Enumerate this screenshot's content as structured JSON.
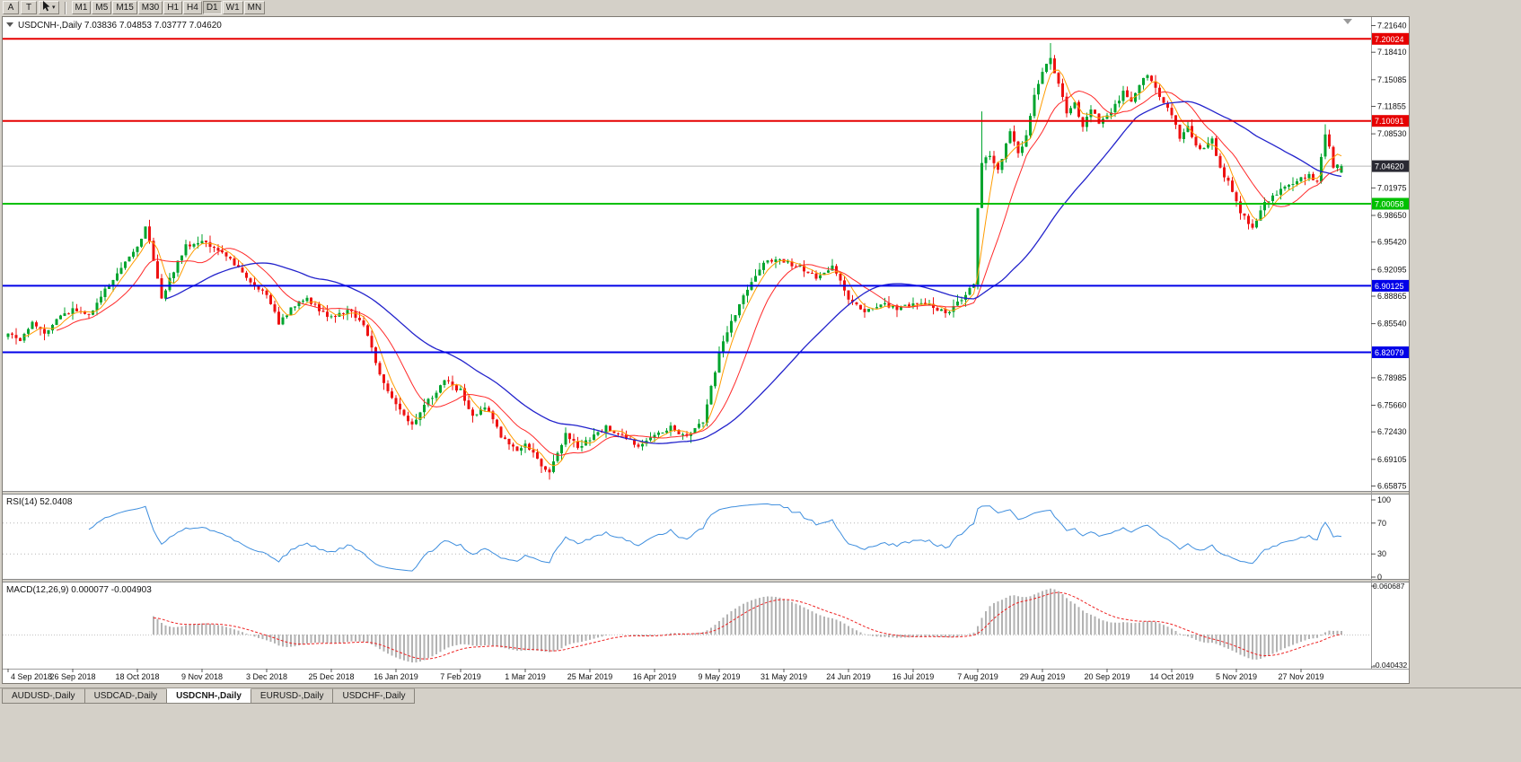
{
  "window": {
    "toolbar": {
      "button_a": "A",
      "button_t": "T",
      "timeframes": [
        "M1",
        "M5",
        "M15",
        "M30",
        "H1",
        "H4",
        "D1",
        "W1",
        "MN"
      ],
      "active_timeframe": "D1"
    },
    "tabs": [
      {
        "label": "AUDUSD-,Daily",
        "active": false
      },
      {
        "label": "USDCAD-,Daily",
        "active": false
      },
      {
        "label": "USDCNH-,Daily",
        "active": true
      },
      {
        "label": "EURUSD-,Daily",
        "active": false
      },
      {
        "label": "USDCHF-,Daily",
        "active": false
      }
    ]
  },
  "chart_data": {
    "type": "candlestick",
    "symbol": "USDCNH-",
    "period": "Daily",
    "title_text": "USDCNH-,Daily  7.03836 7.04853 7.03777 7.04620",
    "ohlc": {
      "open": 7.03836,
      "high": 7.04853,
      "low": 7.03777,
      "close": 7.0462
    },
    "colors": {
      "up": "#00a42e",
      "down": "#ee1111",
      "ma_fast": "#ff9c00",
      "ma_mid": "#ff2a2a",
      "ma_slow": "#2323cc",
      "bid_line": "#b8b8b8",
      "bid_box": "#2a2a33",
      "rsi": "#3e8ede",
      "macd_hist": "#b2b2b2",
      "macd_signal": "#ee2222",
      "level_red": "#e60000",
      "level_green": "#00c000",
      "level_blue": "#0202e8"
    },
    "y_axis": {
      "min": 6.655,
      "max": 7.2245,
      "ticks": [
        {
          "price": 7.2164,
          "label": "7.21640"
        },
        {
          "price": 7.1841,
          "label": "7.18410"
        },
        {
          "price": 7.15085,
          "label": "7.15085"
        },
        {
          "price": 7.11855,
          "label": "7.11855"
        },
        {
          "price": 7.0853,
          "label": "7.08530"
        },
        {
          "price": 7.01975,
          "label": "7.01975"
        },
        {
          "price": 6.9865,
          "label": "6.98650"
        },
        {
          "price": 6.9542,
          "label": "6.95420"
        },
        {
          "price": 6.92095,
          "label": "6.92095"
        },
        {
          "price": 6.88865,
          "label": "6.88865"
        },
        {
          "price": 6.8554,
          "label": "6.85540"
        },
        {
          "price": 6.78985,
          "label": "6.78985"
        },
        {
          "price": 6.7566,
          "label": "6.75660"
        },
        {
          "price": 6.7243,
          "label": "6.72430"
        },
        {
          "price": 6.69105,
          "label": "6.69105"
        },
        {
          "price": 6.65875,
          "label": "6.65875"
        }
      ]
    },
    "x_axis": {
      "bars_per_label": 16,
      "total_bars": 331,
      "labels": [
        "4 Sep 2018",
        "26 Sep 2018",
        "18 Oct 2018",
        "9 Nov 2018",
        "3 Dec 2018",
        "25 Dec 2018",
        "16 Jan 2019",
        "7 Feb 2019",
        "1 Mar 2019",
        "25 Mar 2019",
        "16 Apr 2019",
        "9 May 2019",
        "31 May 2019",
        "24 Jun 2019",
        "16 Jul 2019",
        "7 Aug 2019",
        "29 Aug 2019",
        "20 Sep 2019",
        "14 Oct 2019",
        "5 Nov 2019",
        "27 Nov 2019"
      ]
    },
    "levels": [
      {
        "price": 7.20024,
        "label": "7.20024",
        "color_key": "level_red"
      },
      {
        "price": 7.10091,
        "label": "7.10091",
        "color_key": "level_red"
      },
      {
        "price": 7.00058,
        "label": "7.00058",
        "color_key": "level_green"
      },
      {
        "price": 6.90125,
        "label": "6.90125",
        "color_key": "level_blue"
      },
      {
        "price": 6.82079,
        "label": "6.82079",
        "color_key": "level_blue"
      }
    ],
    "bid": {
      "price": 7.0462,
      "label": "7.04620"
    },
    "moving_averages": [
      {
        "period": 5,
        "color_key": "ma_fast"
      },
      {
        "period": 13,
        "color_key": "ma_mid"
      },
      {
        "period": 40,
        "color_key": "ma_slow"
      }
    ],
    "close_path_anchors": [
      [
        0,
        6.845
      ],
      [
        3,
        6.833
      ],
      [
        6,
        6.858
      ],
      [
        9,
        6.842
      ],
      [
        12,
        6.86
      ],
      [
        16,
        6.872
      ],
      [
        20,
        6.866
      ],
      [
        24,
        6.896
      ],
      [
        28,
        6.924
      ],
      [
        32,
        6.948
      ],
      [
        34,
        6.972
      ],
      [
        36,
        6.934
      ],
      [
        38,
        6.886
      ],
      [
        41,
        6.92
      ],
      [
        44,
        6.95
      ],
      [
        48,
        6.956
      ],
      [
        52,
        6.944
      ],
      [
        56,
        6.928
      ],
      [
        60,
        6.904
      ],
      [
        64,
        6.89
      ],
      [
        67,
        6.856
      ],
      [
        70,
        6.874
      ],
      [
        74,
        6.886
      ],
      [
        78,
        6.868
      ],
      [
        80,
        6.862
      ],
      [
        84,
        6.872
      ],
      [
        88,
        6.856
      ],
      [
        92,
        6.792
      ],
      [
        96,
        6.756
      ],
      [
        100,
        6.732
      ],
      [
        104,
        6.762
      ],
      [
        108,
        6.786
      ],
      [
        112,
        6.774
      ],
      [
        115,
        6.742
      ],
      [
        118,
        6.756
      ],
      [
        122,
        6.72
      ],
      [
        126,
        6.7
      ],
      [
        128,
        6.712
      ],
      [
        131,
        6.69
      ],
      [
        134,
        6.676
      ],
      [
        138,
        6.722
      ],
      [
        141,
        6.706
      ],
      [
        144,
        6.716
      ],
      [
        148,
        6.73
      ],
      [
        152,
        6.72
      ],
      [
        156,
        6.706
      ],
      [
        160,
        6.72
      ],
      [
        164,
        6.73
      ],
      [
        168,
        6.718
      ],
      [
        172,
        6.736
      ],
      [
        176,
        6.82
      ],
      [
        180,
        6.868
      ],
      [
        184,
        6.908
      ],
      [
        188,
        6.934
      ],
      [
        192,
        6.93
      ],
      [
        196,
        6.924
      ],
      [
        200,
        6.91
      ],
      [
        204,
        6.924
      ],
      [
        208,
        6.886
      ],
      [
        212,
        6.87
      ],
      [
        216,
        6.88
      ],
      [
        220,
        6.874
      ],
      [
        224,
        6.88
      ],
      [
        228,
        6.878
      ],
      [
        232,
        6.868
      ],
      [
        236,
        6.884
      ],
      [
        239,
        6.905
      ],
      [
        240,
        6.998
      ],
      [
        241,
        7.052
      ],
      [
        243,
        7.058
      ],
      [
        245,
        7.04
      ],
      [
        248,
        7.088
      ],
      [
        250,
        7.062
      ],
      [
        252,
        7.082
      ],
      [
        254,
        7.13
      ],
      [
        256,
        7.16
      ],
      [
        258,
        7.176
      ],
      [
        260,
        7.146
      ],
      [
        262,
        7.112
      ],
      [
        264,
        7.122
      ],
      [
        266,
        7.092
      ],
      [
        268,
        7.116
      ],
      [
        270,
        7.1
      ],
      [
        272,
        7.106
      ],
      [
        274,
        7.12
      ],
      [
        276,
        7.136
      ],
      [
        278,
        7.122
      ],
      [
        280,
        7.146
      ],
      [
        282,
        7.156
      ],
      [
        284,
        7.14
      ],
      [
        286,
        7.122
      ],
      [
        288,
        7.11
      ],
      [
        290,
        7.082
      ],
      [
        292,
        7.096
      ],
      [
        294,
        7.072
      ],
      [
        296,
        7.066
      ],
      [
        298,
        7.08
      ],
      [
        300,
        7.042
      ],
      [
        302,
        7.028
      ],
      [
        305,
        6.988
      ],
      [
        308,
        6.974
      ],
      [
        311,
        7.0
      ],
      [
        314,
        7.014
      ],
      [
        317,
        7.024
      ],
      [
        320,
        7.03
      ],
      [
        322,
        7.036
      ],
      [
        324,
        7.026
      ],
      [
        326,
        7.086
      ],
      [
        327,
        7.07
      ],
      [
        328,
        7.046
      ],
      [
        330,
        7.0462
      ]
    ],
    "indicators": {
      "rsi": {
        "label": "RSI(14) 52.0408",
        "period": 14,
        "value": 52.0408,
        "scale": {
          "ticks": [
            {
              "v": 100,
              "label": "100"
            },
            {
              "v": 70,
              "label": "70"
            },
            {
              "v": 30,
              "label": "30"
            },
            {
              "v": 0,
              "label": "0"
            }
          ],
          "dotted": [
            70,
            30
          ]
        }
      },
      "macd": {
        "label": "MACD(12,26,9) 0.000077 -0.004903",
        "fast": 12,
        "slow": 26,
        "signal": 9,
        "main_value": 7.7e-05,
        "signal_value": -0.004903,
        "scale": {
          "max": 0.060687,
          "min": -0.040432,
          "max_label": "0.060687",
          "min_label": "-0.040432"
        }
      }
    }
  }
}
